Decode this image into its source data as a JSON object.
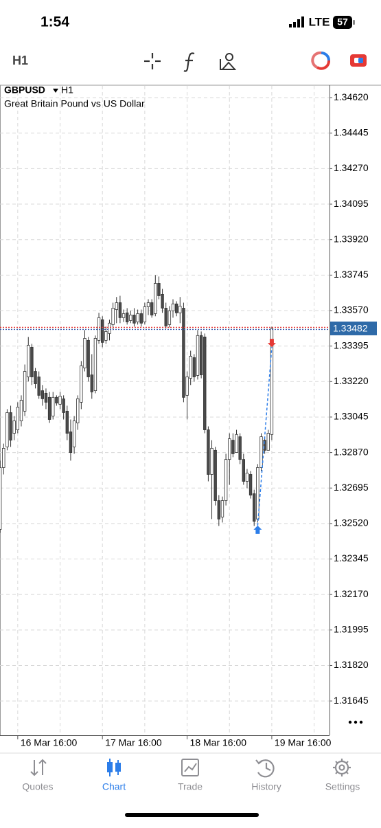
{
  "status_bar": {
    "time": "1:54",
    "network": "LTE",
    "battery": "57"
  },
  "toolbar": {
    "timeframe": "H1"
  },
  "chart_data": {
    "type": "candlestick",
    "symbol": "GBPUSD",
    "timeframe": "H1",
    "subtitle": "Great Britain Pound vs US Dollar",
    "categories": [
      null,
      null,
      null,
      null,
      null,
      null,
      "16 Mar 16:00",
      null,
      null,
      null,
      null,
      null,
      null,
      null,
      null,
      null,
      null,
      null,
      null,
      null,
      null,
      null,
      null,
      null,
      null,
      null,
      null,
      null,
      null,
      null,
      "17 Mar 16:00",
      null,
      null,
      null,
      null,
      null,
      null,
      null,
      null,
      null,
      null,
      null,
      null,
      null,
      null,
      null,
      null,
      null,
      null,
      null,
      null,
      null,
      null,
      null,
      "18 Mar 16:00",
      null,
      null,
      null,
      null,
      null,
      null,
      null,
      null,
      null,
      null,
      null,
      null,
      null,
      null,
      null,
      null,
      null,
      null,
      null,
      null,
      null,
      null,
      null,
      "19 Mar 16:00"
    ],
    "open": [
      1.3266,
      1.32491,
      1.32796,
      1.32898,
      1.33067,
      1.32965,
      1.32982,
      1.33026,
      1.33074,
      1.33243,
      1.33389,
      1.3327,
      1.33243,
      1.33175,
      1.33162,
      1.33142,
      1.3305,
      1.33142,
      1.33108,
      1.33135,
      1.33074,
      1.32972,
      1.32898,
      1.33016,
      1.33118,
      1.33287,
      1.33423,
      1.33253,
      1.33175,
      1.33423,
      1.33525,
      1.33423,
      1.33457,
      1.33501,
      1.33575,
      1.33609,
      1.33535,
      1.33559,
      1.33521,
      1.33548,
      1.33514,
      1.33555,
      1.33514,
      1.33589,
      1.33609,
      1.33555,
      1.33704,
      1.3365,
      1.33582,
      1.33501,
      1.33569,
      1.33603,
      1.33559,
      1.33582,
      1.33152,
      1.33236,
      1.33338,
      1.3325,
      1.33447,
      1.3344,
      1.32982,
      1.32762,
      1.32881,
      1.32633,
      1.32552,
      1.32633,
      1.32836,
      1.32931,
      1.3287,
      1.32948,
      1.32836,
      1.32728,
      1.32762,
      1.32667,
      1.32542,
      1.32796,
      1.32931,
      1.32881,
      1.32959
    ],
    "high": [
      1.32677,
      1.3283,
      1.32914,
      1.33084,
      1.33101,
      1.3305,
      1.33118,
      1.33152,
      1.33304,
      1.3344,
      1.33406,
      1.33287,
      1.3327,
      1.33203,
      1.33186,
      1.33169,
      1.33169,
      1.33152,
      1.33169,
      1.33152,
      1.33101,
      1.33033,
      1.3305,
      1.33152,
      1.33321,
      1.33474,
      1.3344,
      1.33355,
      1.33447,
      1.33559,
      1.33542,
      1.33491,
      1.33525,
      1.33609,
      1.33637,
      1.33643,
      1.33575,
      1.33582,
      1.33569,
      1.33582,
      1.33575,
      1.33575,
      1.33609,
      1.33626,
      1.33626,
      1.33745,
      1.33738,
      1.33677,
      1.33609,
      1.33592,
      1.33626,
      1.33616,
      1.33637,
      1.33609,
      1.3327,
      1.33372,
      1.33355,
      1.33474,
      1.33467,
      1.33457,
      1.32999,
      1.32931,
      1.32898,
      1.3266,
      1.32653,
      1.32864,
      1.32965,
      1.32965,
      1.32982,
      1.32965,
      1.32864,
      1.32789,
      1.32779,
      1.32687,
      1.32813,
      1.32965,
      1.32948,
      1.32982,
      1.33491
    ],
    "low": [
      1.32423,
      1.32474,
      1.32762,
      1.32881,
      1.32898,
      1.32931,
      1.32965,
      1.32999,
      1.3305,
      1.3322,
      1.33203,
      1.33186,
      1.33135,
      1.33101,
      1.33084,
      1.33016,
      1.33033,
      1.33101,
      1.33084,
      1.33033,
      1.32931,
      1.3283,
      1.32864,
      1.32982,
      1.33084,
      1.3327,
      1.3322,
      1.33135,
      1.33162,
      1.33406,
      1.33389,
      1.33406,
      1.33423,
      1.33474,
      1.33508,
      1.33508,
      1.33514,
      1.33501,
      1.33508,
      1.33491,
      1.33501,
      1.33491,
      1.33501,
      1.33548,
      1.33535,
      1.33542,
      1.33626,
      1.33559,
      1.33481,
      1.33487,
      1.33535,
      1.33542,
      1.33508,
      1.33118,
      1.33033,
      1.33203,
      1.3322,
      1.3323,
      1.33236,
      1.32965,
      1.32728,
      1.32542,
      1.32609,
      1.32508,
      1.32525,
      1.32609,
      1.32711,
      1.32847,
      1.32881,
      1.32813,
      1.32711,
      1.32694,
      1.32643,
      1.32508,
      1.32525,
      1.32779,
      1.32864,
      1.32881,
      1.32931
    ],
    "close": [
      1.32474,
      1.32796,
      1.32891,
      1.33067,
      1.32931,
      1.33026,
      1.33094,
      1.33128,
      1.3327,
      1.33399,
      1.33243,
      1.33209,
      1.33152,
      1.33135,
      1.33118,
      1.33033,
      1.33142,
      1.33114,
      1.33148,
      1.33067,
      1.32965,
      1.3287,
      1.33026,
      1.33135,
      1.33298,
      1.33433,
      1.33243,
      1.33169,
      1.33433,
      1.33535,
      1.33413,
      1.33467,
      1.33508,
      1.33582,
      1.33609,
      1.33535,
      1.33555,
      1.33514,
      1.33548,
      1.33508,
      1.33555,
      1.33508,
      1.33589,
      1.33609,
      1.33548,
      1.33704,
      1.33643,
      1.33582,
      1.33494,
      1.33569,
      1.33603,
      1.33559,
      1.33592,
      1.33142,
      1.33243,
      1.33345,
      1.33243,
      1.33447,
      1.33253,
      1.32982,
      1.32762,
      1.32891,
      1.32633,
      1.32542,
      1.32633,
      1.32836,
      1.32938,
      1.32864,
      1.32959,
      1.32836,
      1.32728,
      1.32769,
      1.3266,
      1.32531,
      1.32796,
      1.32948,
      1.32881,
      1.32965,
      1.33482
    ],
    "buy_price": 1.3251,
    "sell_price": 1.3339,
    "ylim": [
      1.31476,
      1.34678
    ],
    "yticks": [
      {
        "value": 1.3462,
        "label": "1.34620"
      },
      1.34445,
      {
        "value": 1.3427,
        "label": "1.34270"
      },
      1.34095,
      {
        "value": 1.3392,
        "label": "1.33920"
      },
      1.33745,
      {
        "value": 1.3357,
        "label": "1.33570"
      },
      1.33395,
      {
        "value": 1.3322,
        "label": "1.33220"
      },
      1.33045,
      {
        "value": 1.3287,
        "label": "1.32870"
      },
      1.32695,
      {
        "value": 1.3252,
        "label": "1.32520"
      },
      1.32345,
      {
        "value": 1.3217,
        "label": "1.32170"
      },
      1.31995,
      {
        "value": 1.3182,
        "label": "1.31820"
      },
      1.31645
    ],
    "grid": true,
    "up_color": "#ffffff",
    "down_color": "#4a4a4a"
  },
  "tabs": [
    "Quotes",
    "Chart",
    "Trade",
    "History",
    "Settings"
  ]
}
